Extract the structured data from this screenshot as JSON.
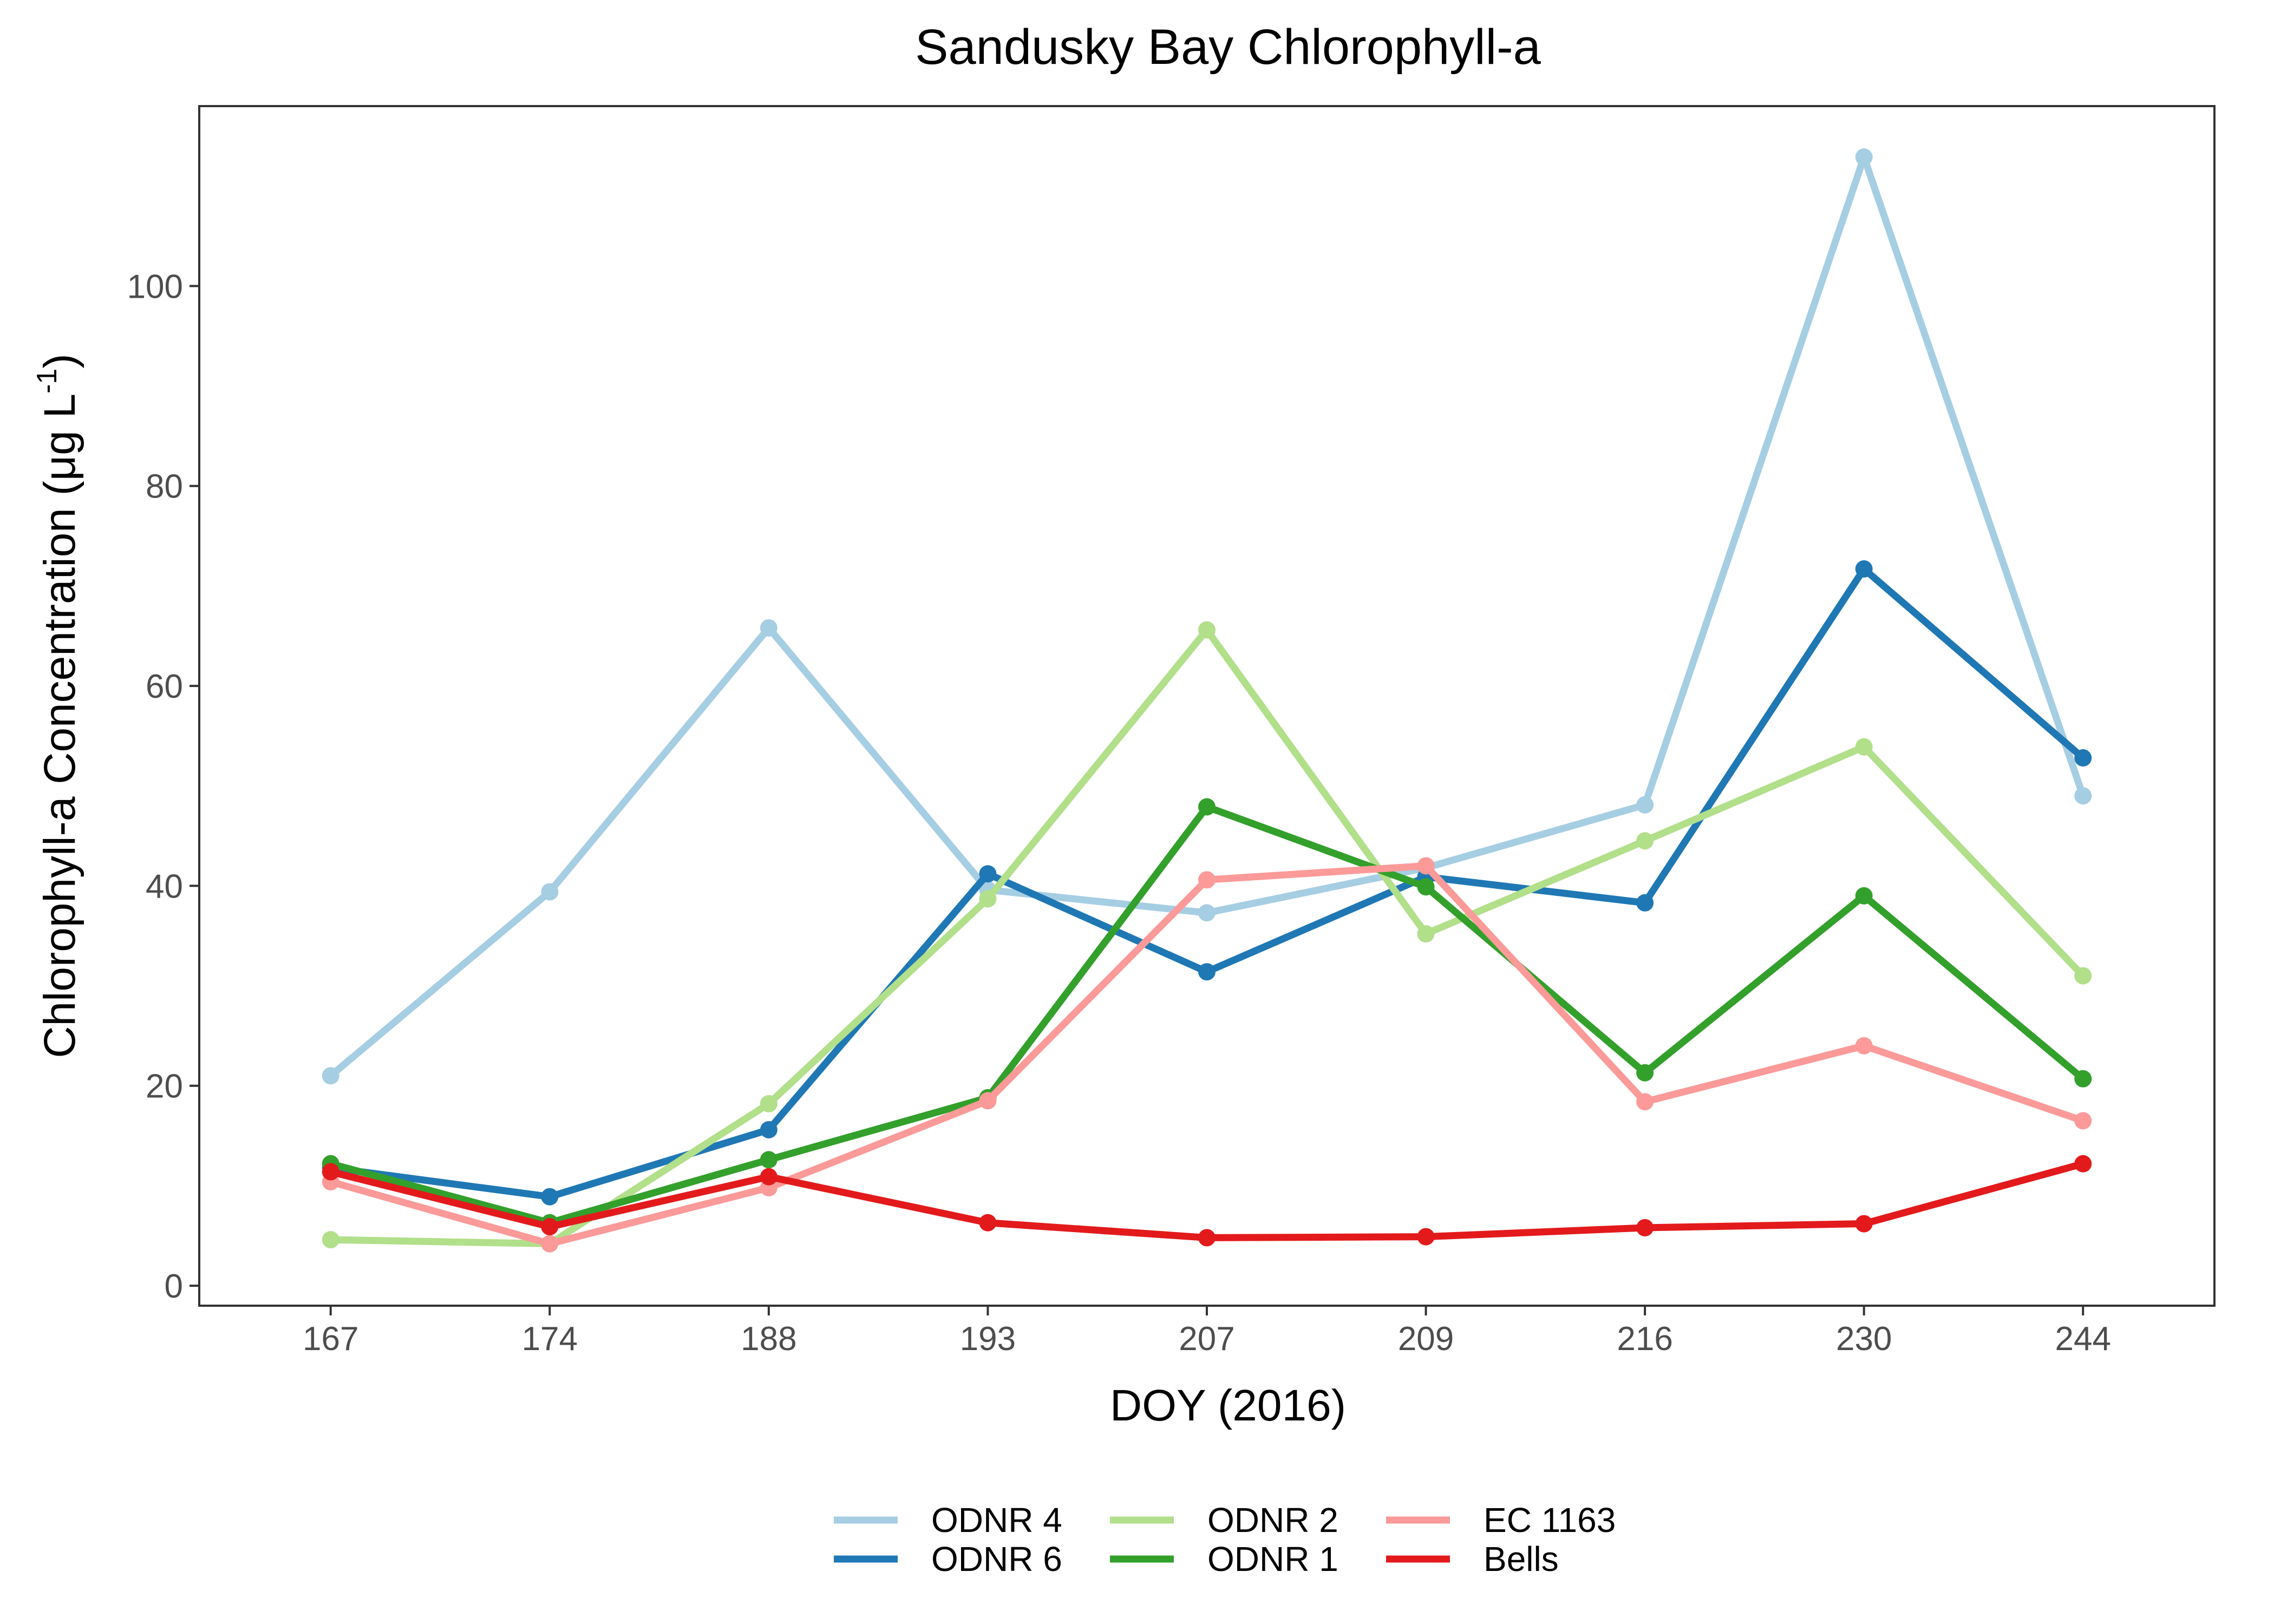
{
  "chart_data": {
    "type": "line",
    "title": "Sandusky Bay Chlorophyll-a",
    "xlabel": "DOY (2016)",
    "ylabel_main": "Chlorophyll-a Concentration (μg L",
    "ylabel_sup": "-1",
    "ylabel_close": ")",
    "categories": [
      "167",
      "174",
      "188",
      "193",
      "207",
      "209",
      "216",
      "230",
      "244"
    ],
    "ylim": [
      -2,
      118
    ],
    "yticks": [
      0,
      20,
      40,
      60,
      80,
      100
    ],
    "ytick_labels": [
      "0",
      "20",
      "40",
      "60",
      "80",
      "100"
    ],
    "grid": false,
    "legend_position": "bottom",
    "series": [
      {
        "name": "ODNR 4",
        "color": "#A6CEE3",
        "values": [
          21,
          39.4,
          65.8,
          39.6,
          37.3,
          41.8,
          48.1,
          112.9,
          49
        ]
      },
      {
        "name": "ODNR 6",
        "color": "#1F78B4",
        "values": [
          11.8,
          8.9,
          15.6,
          41.2,
          31.4,
          40.9,
          38.3,
          71.7,
          52.8
        ]
      },
      {
        "name": "ODNR 2",
        "color": "#B2DF8A",
        "values": [
          4.6,
          4.2,
          18.2,
          38.7,
          65.6,
          35.2,
          44.5,
          53.9,
          31
        ]
      },
      {
        "name": "ODNR 1",
        "color": "#33A02C",
        "values": [
          12.2,
          6.3,
          12.6,
          18.8,
          47.9,
          39.9,
          21.3,
          39,
          20.7
        ]
      },
      {
        "name": "EC 1163",
        "color": "#FB9A99",
        "values": [
          10.4,
          4.2,
          9.8,
          18.5,
          40.6,
          42,
          18.4,
          24,
          16.5
        ]
      },
      {
        "name": "Bells",
        "color": "#E31A1C",
        "values": [
          11.4,
          5.9,
          10.9,
          6.3,
          4.8,
          4.9,
          5.8,
          6.2,
          12.2
        ]
      }
    ]
  }
}
